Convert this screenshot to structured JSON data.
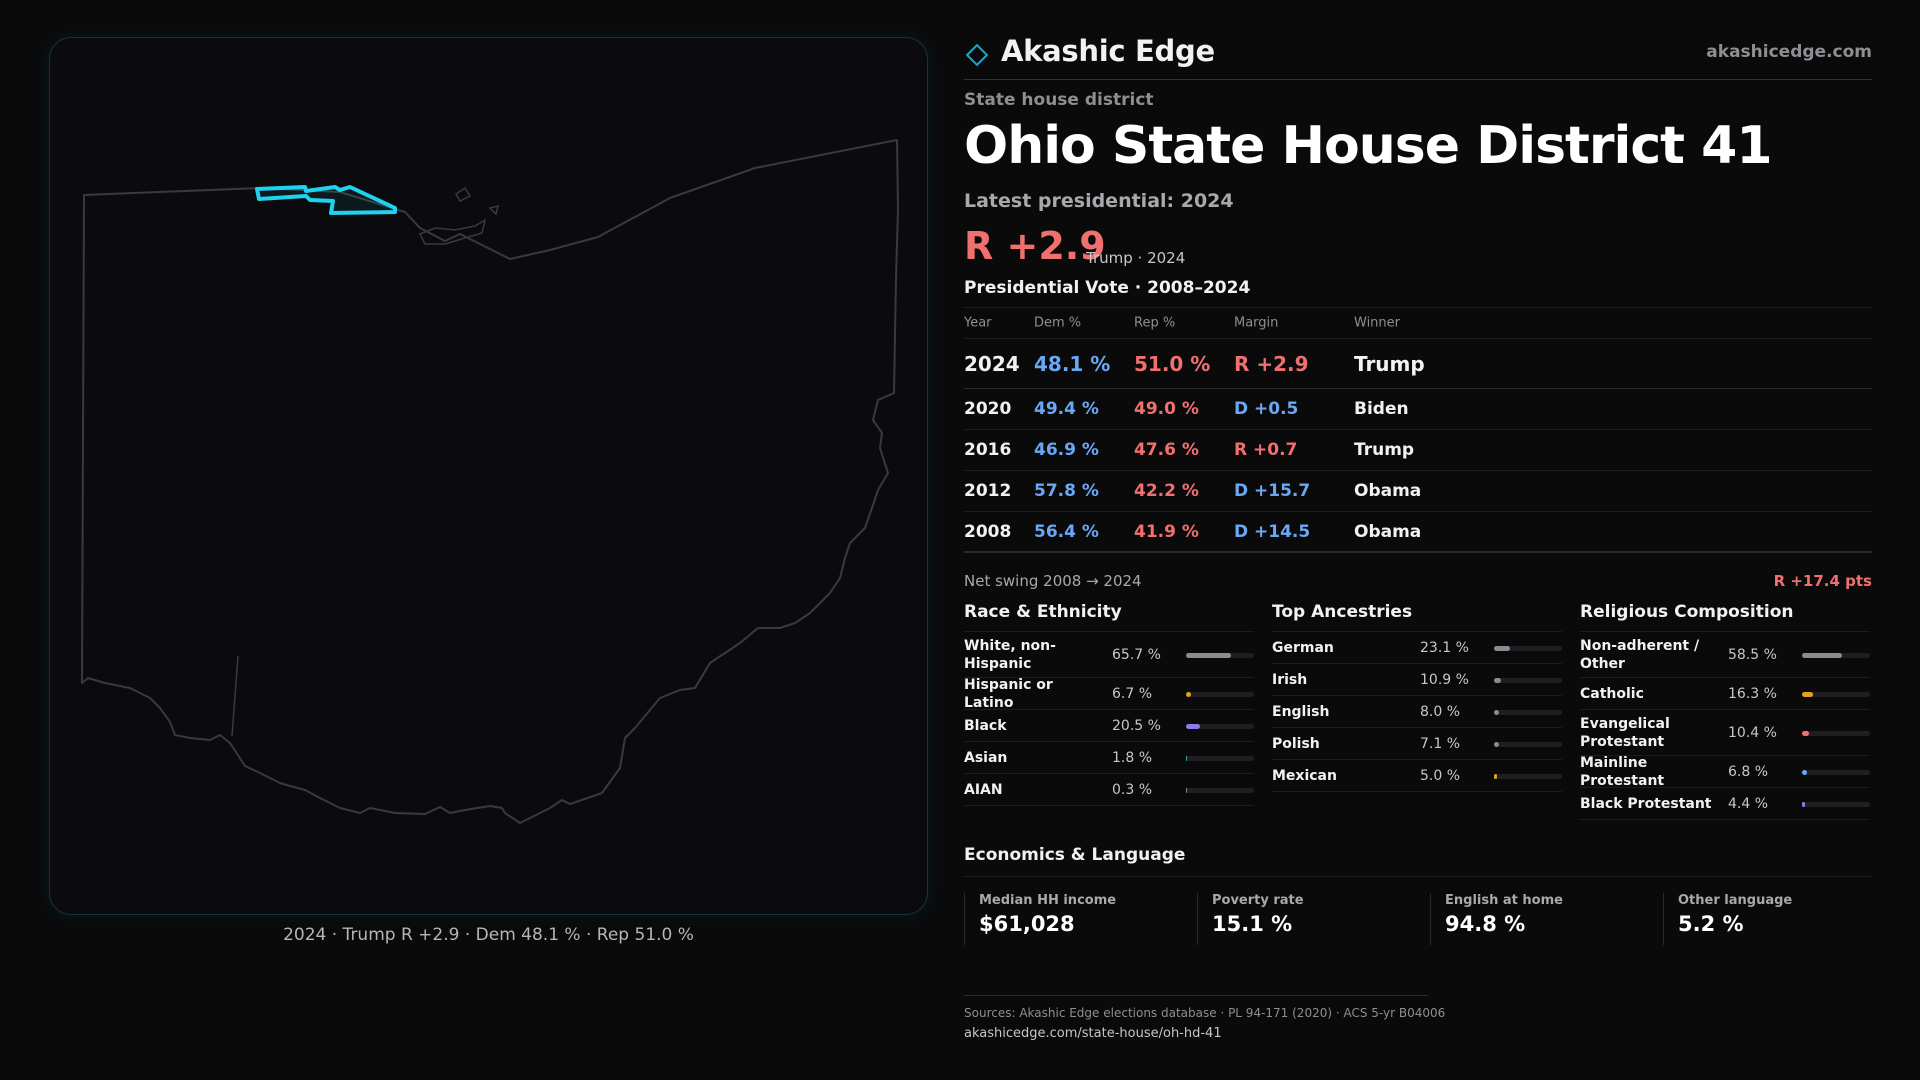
{
  "map": {
    "caption": "2024 · Trump  R +2.9 · Dem 48.1 % · Rep 51.0 %",
    "state_outline_color": "#3a3a3e",
    "district_color": "#1fd2ee"
  },
  "brand": {
    "name": "Akashic Edge",
    "url": "akashicedge.com",
    "logo_icon": "diamond-outline-icon",
    "accent": "#1aa6c8"
  },
  "header": {
    "eyebrow": "State house district",
    "title": "Ohio State House District 41",
    "latest_label": "Latest presidential: 2024",
    "margin": "R +2.9",
    "margin_sub": "Trump · 2024"
  },
  "vote_table": {
    "title": "Presidential Vote · 2008–2024",
    "columns": [
      "Year",
      "Dem %",
      "Rep %",
      "Margin",
      "Winner"
    ],
    "rows": [
      {
        "year": "2024",
        "dem": "48.1 %",
        "rep": "51.0 %",
        "margin": "R +2.9",
        "margin_party": "rep",
        "winner": "Trump"
      },
      {
        "year": "2020",
        "dem": "49.4 %",
        "rep": "49.0 %",
        "margin": "D +0.5",
        "margin_party": "dem",
        "winner": "Biden"
      },
      {
        "year": "2016",
        "dem": "46.9 %",
        "rep": "47.6 %",
        "margin": "R +0.7",
        "margin_party": "rep",
        "winner": "Trump"
      },
      {
        "year": "2012",
        "dem": "57.8 %",
        "rep": "42.2 %",
        "margin": "D +15.7",
        "margin_party": "dem",
        "winner": "Obama"
      },
      {
        "year": "2008",
        "dem": "56.4 %",
        "rep": "41.9 %",
        "margin": "D +14.5",
        "margin_party": "dem",
        "winner": "Obama"
      }
    ]
  },
  "swing": {
    "label": "Net swing 2008 → 2024",
    "value": "R +17.4 pts"
  },
  "race": {
    "title": "Race & Ethnicity",
    "rows": [
      {
        "label": "White, non-Hispanic",
        "value": "65.7 %",
        "pct": 65.7,
        "color": "#8b8b93"
      },
      {
        "label": "Hispanic or Latino",
        "value": "6.7 %",
        "pct": 6.7,
        "color": "#e3a21a"
      },
      {
        "label": "Black",
        "value": "20.5 %",
        "pct": 20.5,
        "color": "#8f7ae6"
      },
      {
        "label": "Asian",
        "value": "1.8 %",
        "pct": 1.8,
        "color": "#2fb39a"
      },
      {
        "label": "AIAN",
        "value": "0.3 %",
        "pct": 0.3,
        "color": "#8b8b93"
      }
    ]
  },
  "ancestry": {
    "title": "Top Ancestries",
    "rows": [
      {
        "label": "German",
        "value": "23.1 %",
        "pct": 23.1,
        "color": "#8b8b93"
      },
      {
        "label": "Irish",
        "value": "10.9 %",
        "pct": 10.9,
        "color": "#8b8b93"
      },
      {
        "label": "English",
        "value": "8.0 %",
        "pct": 8.0,
        "color": "#8b8b93"
      },
      {
        "label": "Polish",
        "value": "7.1 %",
        "pct": 7.1,
        "color": "#8b8b93"
      },
      {
        "label": "Mexican",
        "value": "5.0 %",
        "pct": 5.0,
        "color": "#e3a21a"
      }
    ]
  },
  "religion": {
    "title": "Religious Composition",
    "rows": [
      {
        "label": "Non-adherent / Other",
        "value": "58.5 %",
        "pct": 58.5,
        "color": "#8b8b93"
      },
      {
        "label": "Catholic",
        "value": "16.3 %",
        "pct": 16.3,
        "color": "#e3a21a"
      },
      {
        "label": "Evangelical Protestant",
        "value": "10.4 %",
        "pct": 10.4,
        "color": "#f07070"
      },
      {
        "label": "Mainline Protestant",
        "value": "6.8 %",
        "pct": 6.8,
        "color": "#6aa8f5"
      },
      {
        "label": "Black Protestant",
        "value": "4.4 %",
        "pct": 4.4,
        "color": "#8f7ae6"
      }
    ]
  },
  "economics": {
    "title": "Economics & Language",
    "cells": [
      {
        "label": "Median HH income",
        "value": "$61,028"
      },
      {
        "label": "Poverty rate",
        "value": "15.1 %"
      },
      {
        "label": "English at home",
        "value": "94.8 %"
      },
      {
        "label": "Other language",
        "value": "5.2 %"
      }
    ]
  },
  "sources": {
    "line1": "Sources: Akashic Edge elections database · PL 94-171 (2020) · ACS 5-yr B04006",
    "line2": "akashicedge.com/state-house/oh-hd-41"
  }
}
